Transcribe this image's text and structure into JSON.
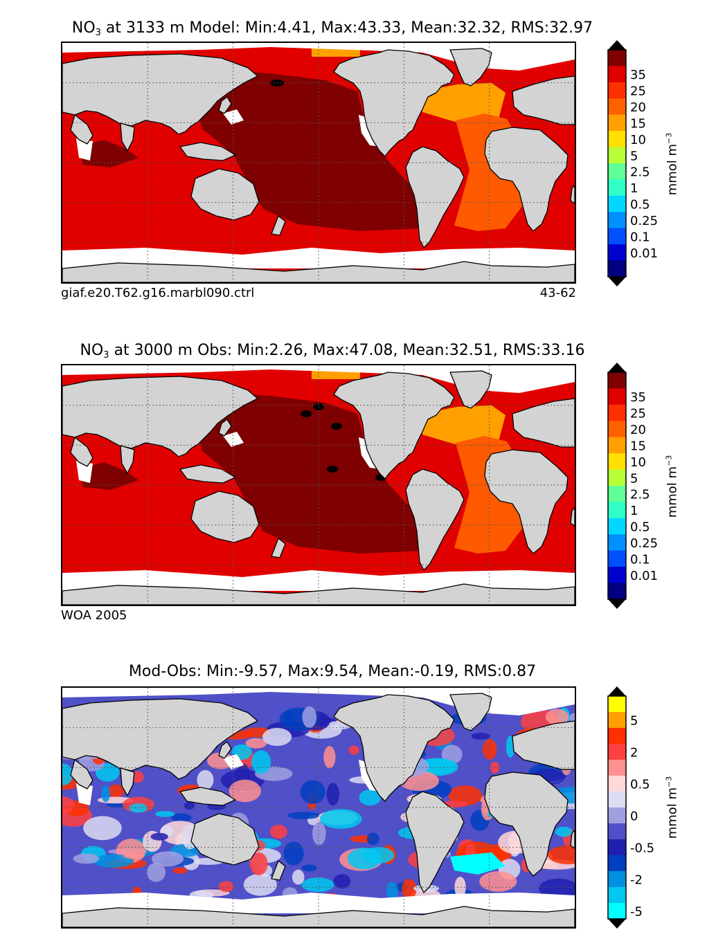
{
  "panels": [
    {
      "title_pre": "NO",
      "title_sub": "3",
      "title_post": " at 3133 m Model: Min:4.41, Max:43.33, Mean:32.32, RMS:32.97",
      "footer_left": "giaf.e20.T62.g16.marbl090.ctrl",
      "footer_right": "43-62",
      "variant": "model"
    },
    {
      "title_pre": "NO",
      "title_sub": "3",
      "title_post": " at 3000 m Obs: Min:2.26, Max:47.08, Mean:32.51, RMS:33.16",
      "footer_left": "WOA 2005",
      "footer_right": "",
      "variant": "obs"
    },
    {
      "title_pre": "",
      "title_sub": "",
      "title_post": "Mod-Obs: Min:-9.57, Max:9.54, Mean:-0.19, RMS:0.87",
      "footer_left": "",
      "footer_right": "",
      "variant": "diff"
    }
  ],
  "colorbars": {
    "abs": {
      "unit": "mmol m",
      "unit_sup": "−3",
      "labels": [
        "35",
        "25",
        "20",
        "15",
        "10",
        "5",
        "2.5",
        "1",
        "0.5",
        "0.25",
        "0.1",
        "0.01"
      ],
      "colors": [
        "#7f0000",
        "#e00000",
        "#ff3000",
        "#ff6000",
        "#ffa000",
        "#ffe000",
        "#b8ff38",
        "#60ff98",
        "#30ffc8",
        "#00d8ff",
        "#0090ff",
        "#0050ff",
        "#0000d0",
        "#000080"
      ]
    },
    "diff": {
      "unit": "mmol m",
      "unit_sup": "−3",
      "labels": [
        "5",
        "2",
        "0.5",
        "0",
        "-0.5",
        "-2",
        "-5"
      ],
      "colors": [
        "#ffff00",
        "#ffa000",
        "#ff3000",
        "#ff4040",
        "#ff9090",
        "#ffd8d8",
        "#dcdcf2",
        "#a0a0e0",
        "#5050c8",
        "#2020b0",
        "#0040c0",
        "#0090e0",
        "#00c8f0",
        "#00ffff"
      ]
    }
  },
  "style": {
    "land": "#d3d3d3",
    "nodata": "#ffffff",
    "pacific_deep": "#7f0000",
    "southern": "#e00000",
    "atlantic_north": "#ffa000",
    "atlantic_south": "#ff5a00",
    "arctic": "#ffe000"
  }
}
